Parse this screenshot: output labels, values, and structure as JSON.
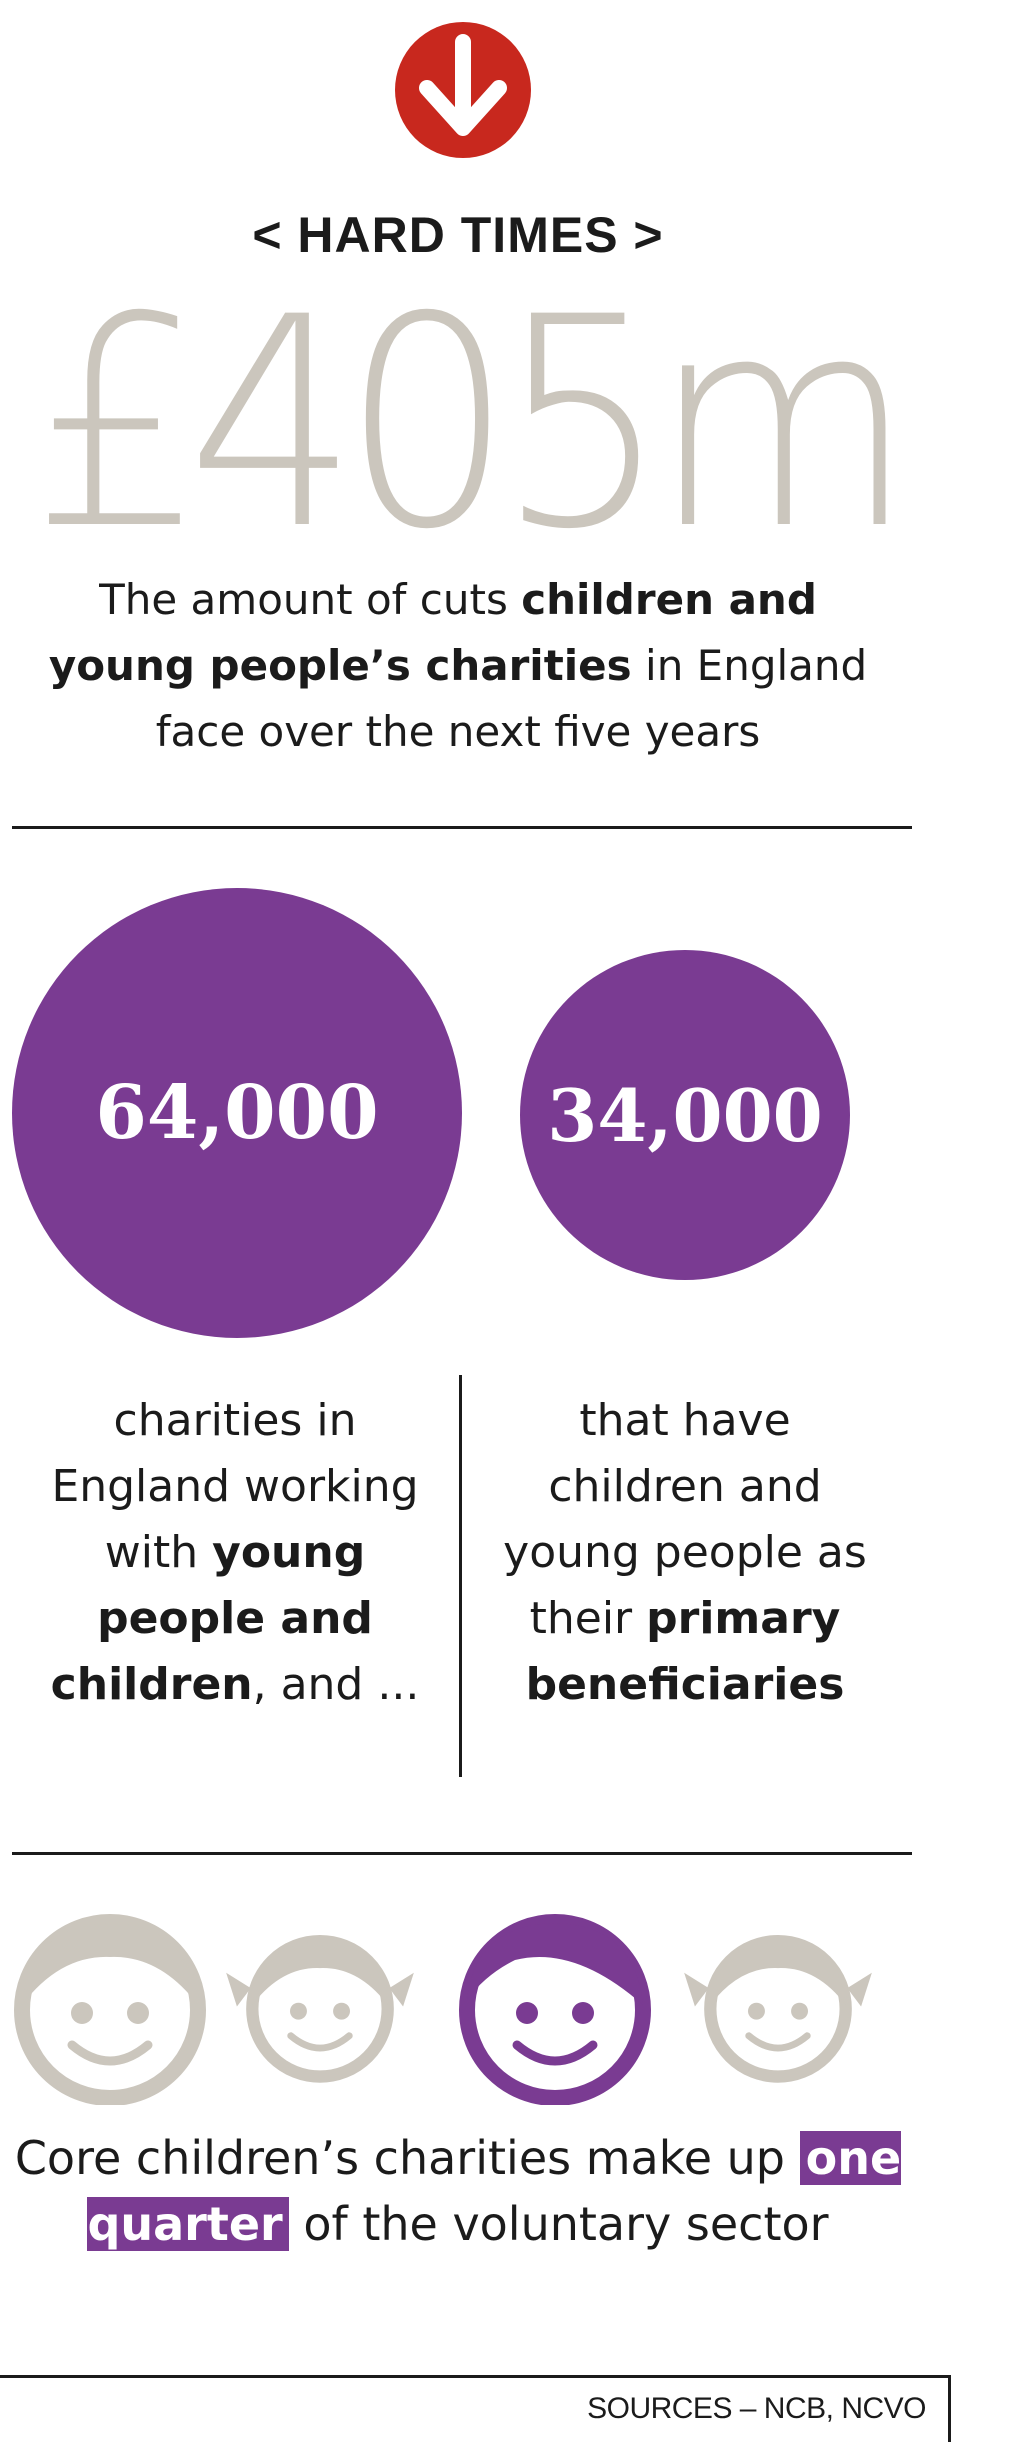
{
  "header": {
    "kicker": "< HARD TIMES >",
    "big_figure": "£405m"
  },
  "caption": {
    "part1": "The amount of cuts ",
    "bold1": "children and young people’s charities",
    "part2": " in England face over the next five years"
  },
  "stats": {
    "left": {
      "value": "64,000",
      "line1": "charities in England working with",
      "bold": "young people and children",
      "line2": ", and ..."
    },
    "right": {
      "value": "34,000",
      "line1": "that have children and young people as their",
      "bold": "primary beneficiaries"
    }
  },
  "faces": {
    "icon": "child-face-icon",
    "total": 4,
    "highlighted_index": 2
  },
  "bottom": {
    "part1": "Core children’s charities make up ",
    "highlight": "one quarter",
    "part2": " of the voluntary sector"
  },
  "sources": "SOURCES – NCB, NCVO",
  "colors": {
    "purple": "#7a3b92",
    "grey": "#cbc6bd",
    "red": "#c8281e",
    "text": "#1b1b1b"
  }
}
